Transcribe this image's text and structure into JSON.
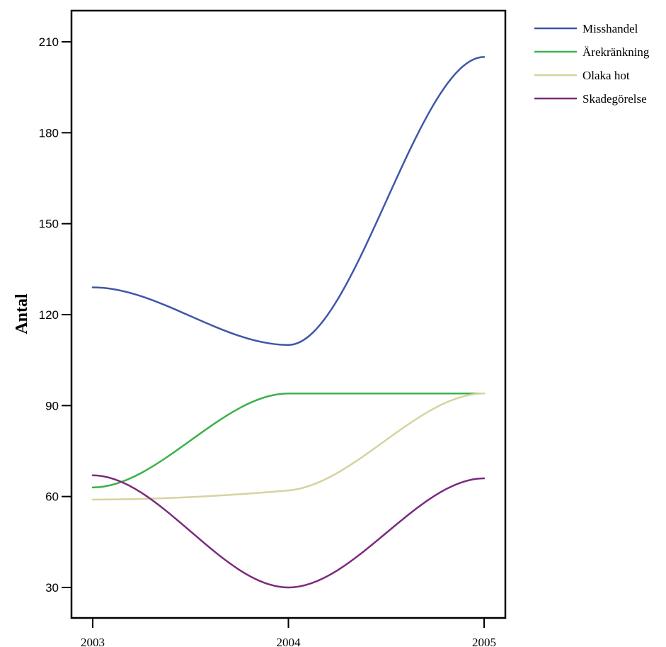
{
  "chart_data": {
    "type": "line",
    "title": "",
    "xlabel": "",
    "ylabel": "Antal",
    "x": [
      "2003",
      "2004",
      "2005"
    ],
    "ylim": [
      15,
      220
    ],
    "yticks": [
      30,
      60,
      90,
      120,
      150,
      180,
      210
    ],
    "grid": false,
    "legend_position": "top-right outside",
    "series": [
      {
        "name": "Misshandel",
        "color": "#3f57a8",
        "values": [
          129,
          110,
          205
        ]
      },
      {
        "name": "Ärekränkning",
        "color": "#3cb14a",
        "values": [
          63,
          94,
          94
        ]
      },
      {
        "name": "Olaka hot",
        "color": "#d6d3a0",
        "values": [
          59,
          62,
          94
        ]
      },
      {
        "name": "Skadegörelse",
        "color": "#7b2a7f",
        "values": [
          67,
          30,
          66
        ]
      }
    ]
  }
}
